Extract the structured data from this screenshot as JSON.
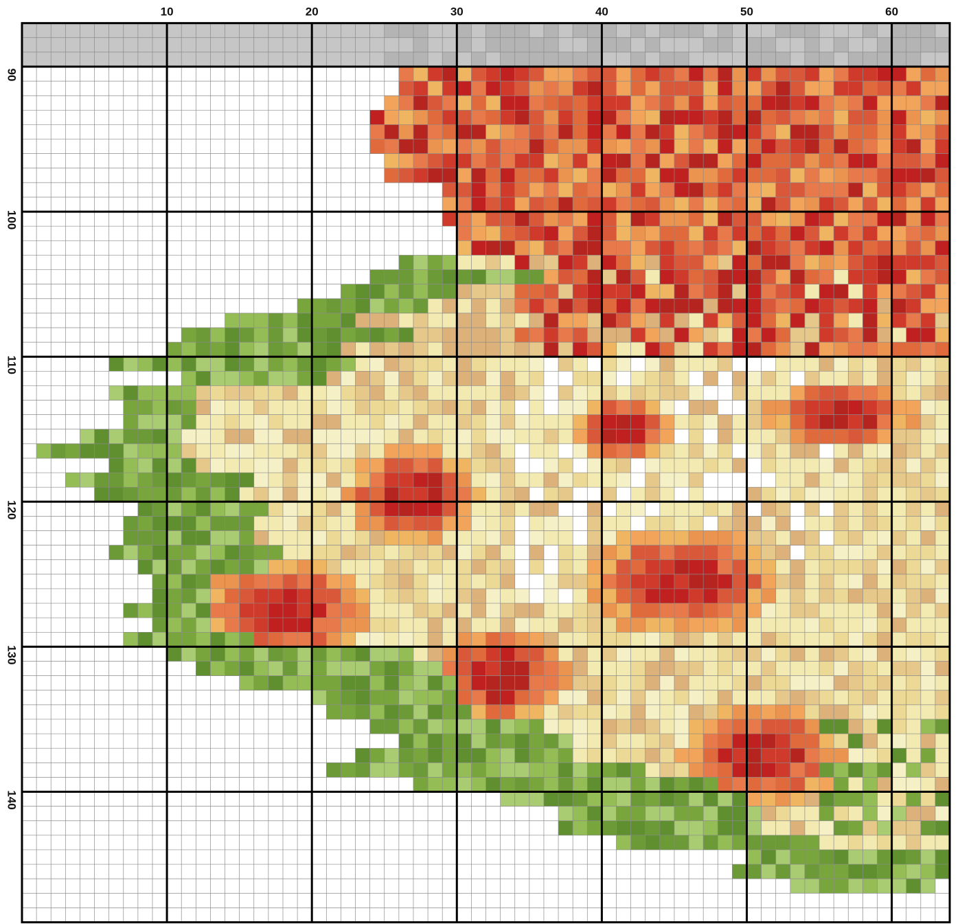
{
  "column_labels": [
    10,
    20,
    30,
    40,
    50,
    60
  ],
  "row_labels": [
    90,
    100,
    110,
    120,
    130,
    140
  ]
}
